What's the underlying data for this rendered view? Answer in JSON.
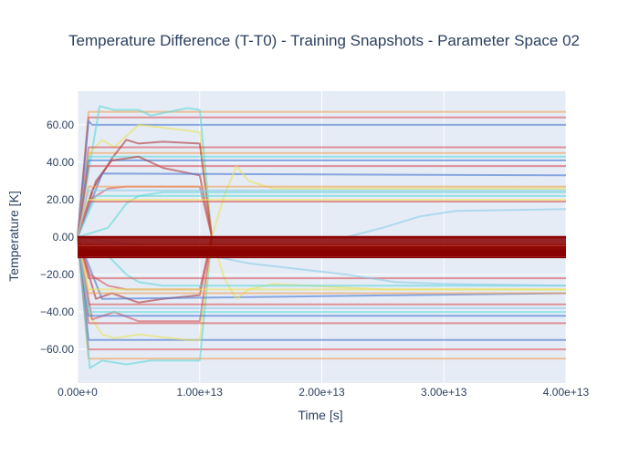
{
  "chart_data": {
    "type": "line",
    "title": "Temperature Difference (T-T0) - Training Snapshots - Parameter Space 02",
    "xlabel": "Time [s]",
    "ylabel": "Temperature [K]",
    "xlim": [
      0,
      40000000000000
    ],
    "ylim": [
      -78,
      78
    ],
    "xticks": [
      {
        "value": 0,
        "label": "0.00e+0"
      },
      {
        "value": 10000000000000,
        "label": "1.00e+13"
      },
      {
        "value": 20000000000000,
        "label": "2.00e+13"
      },
      {
        "value": 30000000000000,
        "label": "3.00e+13"
      },
      {
        "value": 40000000000000,
        "label": "4.00e+13"
      }
    ],
    "yticks": [
      {
        "value": 60,
        "label": "60.00"
      },
      {
        "value": 40,
        "label": "40.00"
      },
      {
        "value": 20,
        "label": "20.00"
      },
      {
        "value": 0,
        "label": "0.00"
      },
      {
        "value": -20,
        "label": "−20.00"
      },
      {
        "value": -40,
        "label": "−40.00"
      },
      {
        "value": -60,
        "label": "−60.00"
      }
    ],
    "grid": true,
    "legend": "none",
    "colors": {
      "plot_bg": "#e5ecf6",
      "grid": "#ffffff",
      "text": "#2a3f5f",
      "palette": [
        "#4c78d0",
        "#d9575e",
        "#f4c24c",
        "#63d8d8",
        "#8ecbe6",
        "#e8e35c",
        "#b03a3a",
        "#f0a35a"
      ]
    },
    "series": [
      {
        "x": [
          0,
          900000000000,
          40000000000000
        ],
        "values": [
          0,
          67,
          67
        ],
        "color_index": 7
      },
      {
        "x": [
          0,
          900000000000,
          40000000000000
        ],
        "values": [
          0,
          64,
          64
        ],
        "color_index": 1
      },
      {
        "x": [
          0,
          900000000000,
          1200000000000,
          40000000000000
        ],
        "values": [
          0,
          62,
          60,
          60
        ],
        "color_index": 0
      },
      {
        "x": [
          0,
          1800000000000,
          3000000000000,
          5000000000000,
          6000000000000,
          9000000000000,
          10000000000000,
          11000000000000
        ],
        "values": [
          0,
          70,
          68,
          68,
          65,
          69,
          68,
          0
        ],
        "color_index": 3
      },
      {
        "x": [
          0,
          1000000000000,
          2000000000000,
          3000000000000,
          5000000000000,
          9000000000000,
          10000000000000,
          11000000000000
        ],
        "values": [
          0,
          45,
          52,
          48,
          60,
          57,
          56,
          0
        ],
        "color_index": 5
      },
      {
        "x": [
          0,
          900000000000,
          40000000000000
        ],
        "values": [
          0,
          48,
          48
        ],
        "color_index": 1
      },
      {
        "x": [
          0,
          900000000000,
          40000000000000
        ],
        "values": [
          0,
          45,
          45
        ],
        "color_index": 7
      },
      {
        "x": [
          0,
          1200000000000,
          2800000000000,
          4000000000000,
          5000000000000,
          7000000000000,
          10000000000000,
          11000000000000
        ],
        "values": [
          0,
          25,
          42,
          52,
          50,
          51,
          50,
          0
        ],
        "color_index": 6
      },
      {
        "x": [
          0,
          900000000000,
          40000000000000
        ],
        "values": [
          0,
          43,
          43
        ],
        "color_index": 3
      },
      {
        "x": [
          0,
          900000000000,
          40000000000000
        ],
        "values": [
          0,
          41,
          41
        ],
        "color_index": 0
      },
      {
        "x": [
          0,
          1500000000000,
          2800000000000,
          5000000000000,
          7000000000000,
          10000000000000,
          11000000000000
        ],
        "values": [
          0,
          30,
          41,
          43,
          37,
          33,
          0
        ],
        "color_index": 6
      },
      {
        "x": [
          0,
          900000000000,
          40000000000000
        ],
        "values": [
          0,
          38,
          38
        ],
        "color_index": 1
      },
      {
        "x": [
          0,
          2000000000000,
          40000000000000
        ],
        "values": [
          0,
          34,
          33
        ],
        "color_index": 0
      },
      {
        "x": [
          0,
          1000000000000,
          2500000000000,
          4000000000000,
          10000000000000,
          11000000000000
        ],
        "values": [
          0,
          20,
          26,
          27,
          27,
          0
        ],
        "color_index": 1
      },
      {
        "x": [
          0,
          11000000000000,
          12000000000000,
          13000000000000,
          14000000000000,
          16000000000000,
          25000000000000,
          40000000000000
        ],
        "values": [
          0,
          0,
          22,
          38,
          30,
          26,
          26,
          26
        ],
        "color_index": 5
      },
      {
        "x": [
          0,
          900000000000,
          40000000000000
        ],
        "values": [
          0,
          27,
          27
        ],
        "color_index": 7
      },
      {
        "x": [
          0,
          2500000000000,
          4000000000000,
          5000000000000,
          7000000000000,
          40000000000000
        ],
        "values": [
          0,
          5,
          18,
          22,
          24,
          24
        ],
        "color_index": 3
      },
      {
        "x": [
          0,
          1500000000000,
          40000000000000
        ],
        "values": [
          0,
          22,
          22
        ],
        "color_index": 3
      },
      {
        "x": [
          0,
          900000000000,
          40000000000000
        ],
        "values": [
          0,
          20,
          20
        ],
        "color_index": 5
      },
      {
        "x": [
          0,
          900000000000,
          40000000000000
        ],
        "values": [
          0,
          19,
          19
        ],
        "color_index": 1
      },
      {
        "x": [
          0,
          22000000000000,
          25000000000000,
          28000000000000,
          31000000000000,
          40000000000000
        ],
        "values": [
          0,
          0,
          5,
          11,
          14,
          15
        ],
        "color_index": 4
      },
      {
        "x": [
          0,
          900000000000,
          40000000000000
        ],
        "values": [
          0,
          25,
          25
        ],
        "color_index": 4
      },
      {
        "x": [
          0,
          900000000000,
          40000000000000
        ],
        "values": [
          0,
          -65,
          -65
        ],
        "color_index": 7
      },
      {
        "x": [
          0,
          900000000000,
          40000000000000
        ],
        "values": [
          0,
          -60,
          -60
        ],
        "color_index": 1
      },
      {
        "x": [
          0,
          900000000000,
          40000000000000
        ],
        "values": [
          0,
          -55,
          -55
        ],
        "color_index": 0
      },
      {
        "x": [
          0,
          1000000000000,
          2000000000000,
          4000000000000,
          6000000000000,
          9000000000000,
          10000000000000,
          11000000000000
        ],
        "values": [
          0,
          -70,
          -66,
          -68,
          -66,
          -66,
          -66,
          0
        ],
        "color_index": 3
      },
      {
        "x": [
          0,
          1000000000000,
          2000000000000,
          3000000000000,
          5000000000000,
          9000000000000,
          10000000000000,
          11000000000000
        ],
        "values": [
          0,
          -42,
          -52,
          -54,
          -52,
          -55,
          -55,
          0
        ],
        "color_index": 5
      },
      {
        "x": [
          0,
          1200000000000,
          3000000000000,
          5000000000000,
          10000000000000,
          11000000000000
        ],
        "values": [
          0,
          -44,
          -40,
          -45,
          -45,
          0
        ],
        "color_index": 1
      },
      {
        "x": [
          0,
          900000000000,
          40000000000000
        ],
        "values": [
          0,
          -46,
          -46
        ],
        "color_index": 1
      },
      {
        "x": [
          0,
          900000000000,
          40000000000000
        ],
        "values": [
          0,
          -42,
          -42
        ],
        "color_index": 0
      },
      {
        "x": [
          0,
          900000000000,
          40000000000000
        ],
        "values": [
          0,
          -40,
          -40
        ],
        "color_index": 3
      },
      {
        "x": [
          0,
          1500000000000,
          2800000000000,
          5000000000000,
          7000000000000,
          10000000000000,
          11000000000000
        ],
        "values": [
          0,
          -33,
          -30,
          -35,
          -33,
          -31,
          0
        ],
        "color_index": 6
      },
      {
        "x": [
          0,
          2000000000000,
          40000000000000
        ],
        "values": [
          0,
          -33,
          -30
        ],
        "color_index": 0
      },
      {
        "x": [
          0,
          1000000000000,
          2500000000000,
          4000000000000,
          10000000000000,
          11000000000000
        ],
        "values": [
          0,
          -20,
          -26,
          -28,
          -28,
          0
        ],
        "color_index": 1
      },
      {
        "x": [
          0,
          11000000000000,
          12000000000000,
          13000000000000,
          14000000000000,
          16000000000000,
          25000000000000,
          40000000000000
        ],
        "values": [
          0,
          0,
          -22,
          -33,
          -28,
          -25,
          -28,
          -28
        ],
        "color_index": 5
      },
      {
        "x": [
          0,
          900000000000,
          40000000000000
        ],
        "values": [
          0,
          -30,
          -30
        ],
        "color_index": 7
      },
      {
        "x": [
          0,
          2500000000000,
          4000000000000,
          5000000000000,
          7000000000000,
          40000000000000
        ],
        "values": [
          0,
          -10,
          -20,
          -24,
          -26,
          -26
        ],
        "color_index": 3
      },
      {
        "x": [
          0,
          900000000000,
          40000000000000
        ],
        "values": [
          0,
          -22,
          -22
        ],
        "color_index": 1
      },
      {
        "x": [
          0,
          900000000000,
          40000000000000
        ],
        "values": [
          0,
          -36,
          -36
        ],
        "color_index": 1
      },
      {
        "x": [
          0,
          11000000000000,
          14000000000000,
          18000000000000,
          22000000000000,
          26000000000000,
          30000000000000,
          40000000000000
        ],
        "values": [
          0,
          -10,
          -14,
          -17,
          -20,
          -24,
          -25,
          -26
        ],
        "color_index": 4
      },
      {
        "x": [
          0,
          900000000000,
          40000000000000
        ],
        "values": [
          0,
          -38,
          -38
        ],
        "color_index": 4
      },
      {
        "x": [
          0,
          900000000000,
          40000000000000
        ],
        "values": [
          0,
          -28,
          -28
        ],
        "color_index": 5
      }
    ],
    "band_series": {
      "color": "#8b0000",
      "fill_colors": [
        "#8b0000",
        "#c0392b",
        "#e8641f",
        "#f28c28",
        "#b5651d",
        "#8b4513"
      ],
      "values": [
        0,
        -4,
        -5,
        -5.5,
        -6,
        -6.5,
        -7,
        -7.5,
        -8,
        -8.5,
        -9,
        -9.5,
        -10,
        -11
      ]
    }
  }
}
